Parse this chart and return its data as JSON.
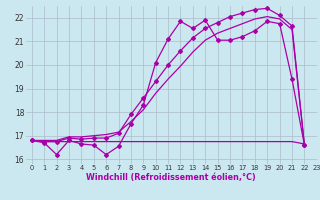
{
  "xlabel": "Windchill (Refroidissement éolien,°C)",
  "xlim": [
    -0.5,
    23
  ],
  "ylim": [
    15.8,
    22.5
  ],
  "yticks": [
    16,
    17,
    18,
    19,
    20,
    21,
    22
  ],
  "xticks": [
    0,
    1,
    2,
    3,
    4,
    5,
    6,
    7,
    8,
    9,
    10,
    11,
    12,
    13,
    14,
    15,
    16,
    17,
    18,
    19,
    20,
    21,
    22,
    23
  ],
  "bg_color": "#cbe8f0",
  "line_color": "#aa00aa",
  "grid_color": "#aabbcc",
  "line1_x": [
    0,
    1,
    2,
    3,
    4,
    5,
    6,
    7,
    8,
    9,
    10,
    11,
    12,
    13,
    14,
    15,
    16,
    17,
    18,
    19,
    20,
    21,
    22
  ],
  "line1_y": [
    16.8,
    16.75,
    16.75,
    16.75,
    16.75,
    16.75,
    16.75,
    16.75,
    16.75,
    16.75,
    16.75,
    16.75,
    16.75,
    16.75,
    16.75,
    16.75,
    16.75,
    16.75,
    16.75,
    16.75,
    16.75,
    16.75,
    16.65
  ],
  "line2_x": [
    0,
    1,
    2,
    3,
    4,
    5,
    6,
    7,
    8,
    9,
    10,
    11,
    12,
    13,
    14,
    15,
    16,
    17,
    18,
    19,
    20,
    21,
    22
  ],
  "line2_y": [
    16.8,
    16.7,
    16.2,
    16.8,
    16.65,
    16.6,
    16.2,
    16.55,
    17.5,
    18.3,
    20.1,
    21.1,
    21.85,
    21.55,
    21.9,
    21.05,
    21.05,
    21.2,
    21.45,
    21.85,
    21.75,
    19.4,
    16.6
  ],
  "line3_x": [
    0,
    1,
    2,
    3,
    4,
    5,
    6,
    7,
    8,
    9,
    10,
    11,
    12,
    13,
    14,
    15,
    16,
    17,
    18,
    19,
    20,
    21,
    22
  ],
  "line3_y": [
    16.8,
    16.75,
    16.75,
    16.9,
    16.85,
    16.9,
    16.9,
    17.1,
    17.9,
    18.6,
    19.3,
    20.0,
    20.6,
    21.15,
    21.55,
    21.8,
    22.05,
    22.2,
    22.35,
    22.4,
    22.1,
    21.65,
    16.6
  ],
  "line4_x": [
    0,
    1,
    2,
    3,
    4,
    5,
    6,
    7,
    8,
    9,
    10,
    11,
    12,
    13,
    14,
    15,
    16,
    17,
    18,
    19,
    20,
    21,
    22
  ],
  "line4_y": [
    16.8,
    16.8,
    16.8,
    16.95,
    16.95,
    17.0,
    17.05,
    17.15,
    17.6,
    18.1,
    18.8,
    19.4,
    19.95,
    20.55,
    21.05,
    21.35,
    21.55,
    21.75,
    21.95,
    22.05,
    21.95,
    21.5,
    16.6
  ]
}
